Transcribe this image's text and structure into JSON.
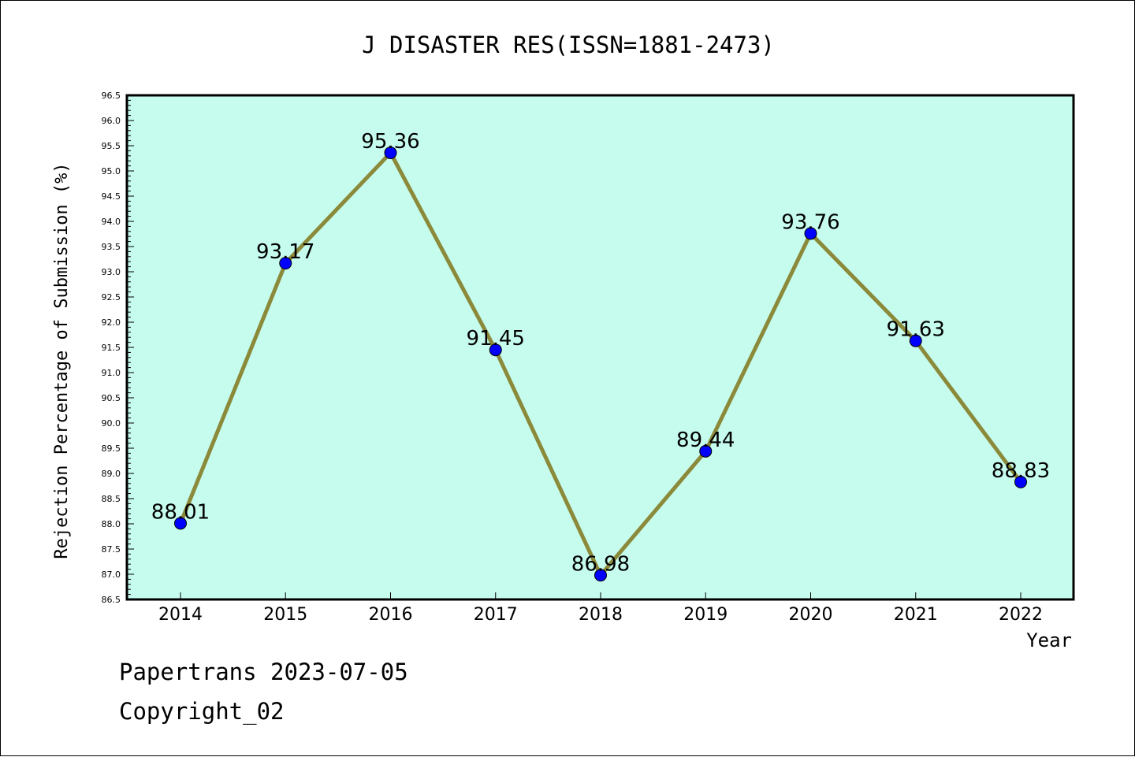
{
  "chart_data": {
    "type": "line",
    "title": "J DISASTER RES(ISSN=1881-2473)",
    "xlabel": "Year",
    "ylabel": "Rejection Percentage of Submission (%)",
    "categories": [
      "2014",
      "2015",
      "2016",
      "2017",
      "2018",
      "2019",
      "2020",
      "2021",
      "2022"
    ],
    "values": [
      88.01,
      93.17,
      95.36,
      91.45,
      86.98,
      89.44,
      93.76,
      91.63,
      88.83
    ],
    "data_labels": [
      "88.01",
      "93.17",
      "95.36",
      "91.45",
      "86.98",
      "89.44",
      "93.76",
      "91.63",
      "88.83"
    ],
    "ylim": [
      86.5,
      96.5
    ],
    "yticks": [
      "86.5",
      "87.0",
      "87.5",
      "88.0",
      "88.5",
      "89.0",
      "89.5",
      "90.0",
      "90.5",
      "91.0",
      "91.5",
      "92.0",
      "92.5",
      "93.0",
      "93.5",
      "94.0",
      "94.5",
      "95.0",
      "95.5",
      "96.0",
      "96.5"
    ],
    "grid": false,
    "colors": {
      "plot_background": "#c6fcee",
      "line": "#8b8a3a",
      "marker": "#0000ff",
      "axis": "#000000"
    }
  },
  "footer": {
    "line1": "Papertrans 2023-07-05",
    "line2": "Copyright_02"
  }
}
